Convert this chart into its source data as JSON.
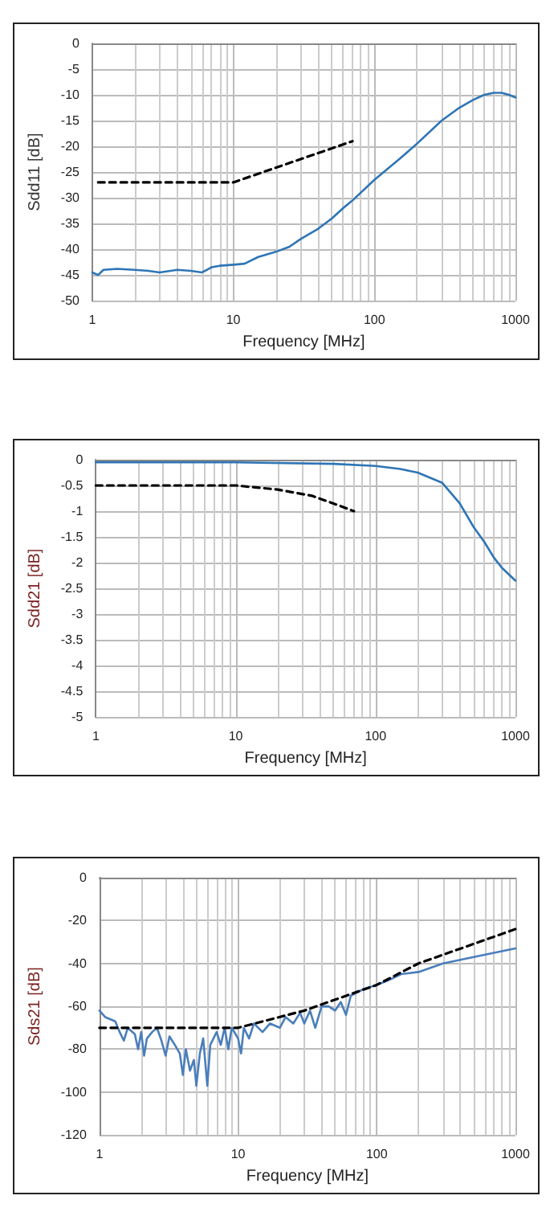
{
  "chart_data": [
    {
      "type": "line",
      "xlabel": "Frequency [MHz]",
      "ylabel": "Sdd11 [dB]",
      "log": "x",
      "grid": true,
      "marker": "none",
      "xlim": [
        1,
        1000
      ],
      "xticks": [
        1,
        10,
        100,
        1000
      ],
      "ylim": [
        -50,
        0
      ],
      "yticks": [
        -50,
        -45,
        -40,
        -35,
        -30,
        -25,
        -20,
        -15,
        -10,
        -5,
        0
      ],
      "series": [
        {
          "color": "#2e75b6",
          "line_style": "solid",
          "x": [
            1,
            1.1,
            1.2,
            1.5,
            2,
            2.5,
            3,
            4,
            5,
            6,
            7,
            8,
            10,
            12,
            15,
            20,
            25,
            30,
            40,
            50,
            60,
            70,
            100,
            150,
            200,
            300,
            400,
            500,
            600,
            700,
            800,
            900,
            1000
          ],
          "values": [
            -44.5,
            -45,
            -44,
            -43.8,
            -44,
            -44.2,
            -44.5,
            -44,
            -44.2,
            -44.5,
            -43.5,
            -43.2,
            -43,
            -42.8,
            -41.5,
            -40.5,
            -39.5,
            -38,
            -36,
            -34,
            -32,
            -30.5,
            -26.5,
            -22.5,
            -19.5,
            -15,
            -12.5,
            -11,
            -10,
            -9.6,
            -9.6,
            -10,
            -10.5
          ]
        },
        {
          "color": "#000000",
          "line_style": "dashed",
          "x": [
            1.1,
            10,
            70
          ],
          "values": [
            -27,
            -27,
            -19
          ]
        }
      ]
    },
    {
      "type": "line",
      "xlabel": "Frequency [MHz]",
      "ylabel": "Sdd21 [dB]",
      "log": "x",
      "grid": true,
      "marker": "none",
      "xlim": [
        1,
        1000
      ],
      "xticks": [
        1,
        10,
        100,
        1000
      ],
      "ylim": [
        -5,
        0
      ],
      "yticks": [
        -5,
        -4.5,
        -4,
        -3.5,
        -3,
        -2.5,
        -2,
        -1.5,
        -1,
        -0.5,
        0
      ],
      "series": [
        {
          "color": "#2e75b6",
          "line_style": "solid",
          "x": [
            1,
            10,
            50,
            100,
            150,
            200,
            300,
            400,
            500,
            600,
            700,
            800,
            1000
          ],
          "values": [
            -0.05,
            -0.05,
            -0.08,
            -0.12,
            -0.18,
            -0.25,
            -0.45,
            -0.85,
            -1.3,
            -1.6,
            -1.9,
            -2.1,
            -2.35
          ]
        },
        {
          "color": "#000000",
          "line_style": "dashed",
          "x": [
            1,
            10,
            20,
            35,
            50,
            70
          ],
          "values": [
            -0.5,
            -0.5,
            -0.58,
            -0.7,
            -0.85,
            -1
          ]
        }
      ]
    },
    {
      "type": "line",
      "xlabel": "Frequency [MHz]",
      "ylabel": "Sds21 [dB]",
      "log": "x",
      "grid": true,
      "marker": "none",
      "xlim": [
        1,
        1000
      ],
      "xticks": [
        1,
        10,
        100,
        1000
      ],
      "ylim": [
        -120,
        0
      ],
      "yticks": [
        -120,
        -100,
        -80,
        -60,
        -40,
        -20,
        0
      ],
      "series": [
        {
          "color": "#4a7ebb",
          "line_style": "solid",
          "x": [
            1,
            1.1,
            1.3,
            1.4,
            1.5,
            1.6,
            1.8,
            1.9,
            2,
            2.1,
            2.2,
            2.4,
            2.6,
            2.8,
            3,
            3.2,
            3.5,
            3.8,
            4,
            4.2,
            4.5,
            4.8,
            5,
            5.3,
            5.6,
            6,
            6.3,
            7,
            7.5,
            8,
            8.5,
            9,
            10,
            10.5,
            11,
            12,
            13,
            15,
            17,
            20,
            22,
            25,
            28,
            30,
            33,
            36,
            40,
            45,
            50,
            55,
            60,
            65,
            70,
            80,
            100,
            120,
            150,
            200,
            300,
            500,
            1000
          ],
          "values": [
            -62,
            -65,
            -67,
            -72,
            -76,
            -70,
            -73,
            -80,
            -72,
            -83,
            -75,
            -72,
            -70,
            -76,
            -83,
            -74,
            -78,
            -82,
            -92,
            -80,
            -90,
            -85,
            -97,
            -82,
            -75,
            -97,
            -78,
            -72,
            -78,
            -70,
            -80,
            -70,
            -75,
            -82,
            -70,
            -75,
            -68,
            -72,
            -68,
            -70,
            -65,
            -68,
            -63,
            -68,
            -62,
            -70,
            -60,
            -60,
            -62,
            -58,
            -64,
            -55,
            -54,
            -52,
            -50,
            -48,
            -45,
            -44,
            -40,
            -37,
            -33
          ]
        },
        {
          "color": "#000000",
          "line_style": "dashed",
          "x": [
            1,
            10,
            30,
            100,
            200,
            1000
          ],
          "values": [
            -70,
            -70,
            -62,
            -50,
            -40,
            -24
          ]
        }
      ]
    }
  ]
}
